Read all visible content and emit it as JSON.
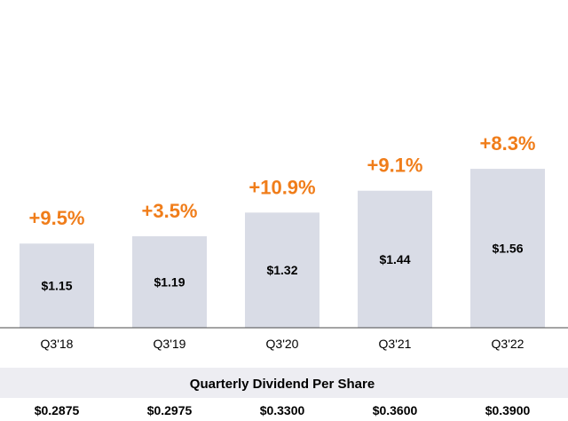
{
  "chart_data": {
    "type": "bar",
    "categories": [
      "Q3'18",
      "Q3'19",
      "Q3'20",
      "Q3'21",
      "Q3'22"
    ],
    "values": [
      1.15,
      1.19,
      1.32,
      1.44,
      1.56
    ],
    "value_labels": [
      "$1.15",
      "$1.19",
      "$1.32",
      "$1.44",
      "$1.56"
    ],
    "growth_labels": [
      "+9.5%",
      "+3.5%",
      "+10.9%",
      "+9.1%",
      "+8.3%"
    ],
    "ylim": [
      0,
      1.6
    ],
    "grid": false,
    "legend": "none",
    "colors": {
      "bar": "#d9dce6",
      "growth": "#f07d1a",
      "band": "#ededf2"
    },
    "table": {
      "title": "Quarterly Dividend Per Share",
      "values": [
        "$0.2875",
        "$0.2975",
        "$0.3300",
        "$0.3600",
        "$0.3900"
      ]
    }
  }
}
